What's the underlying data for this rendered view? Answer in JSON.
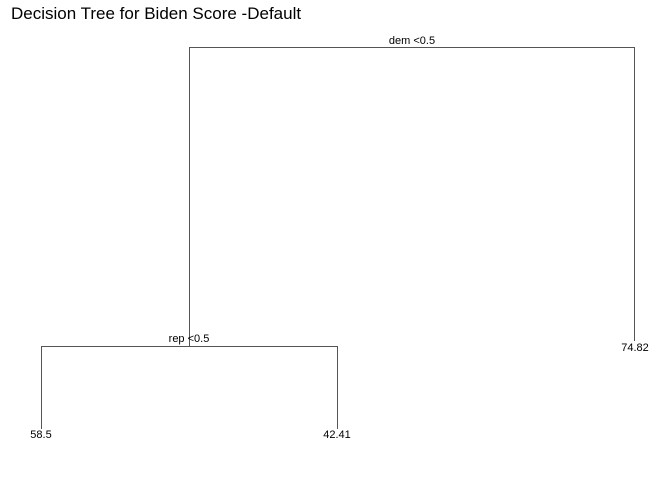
{
  "title": "Decision Tree for Biden Score -Default",
  "tree": {
    "root_split": "dem <0.5",
    "left_split": "rep <0.5",
    "leaves": {
      "left_left": "58.5",
      "left_right": "42.41",
      "right": "74.82"
    }
  },
  "colors": {
    "line": "#555555",
    "text": "#000000"
  }
}
